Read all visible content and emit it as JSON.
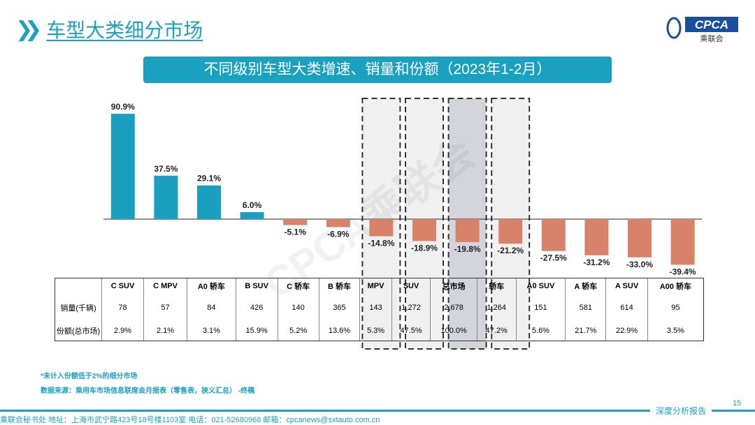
{
  "header": {
    "title": "车型大类细分市场",
    "logo_text": "CPCA",
    "logo_sub": "乘联会"
  },
  "chart_data": {
    "type": "bar",
    "title": "不同级别车型大类增速、销量和份额（2023年1-2月）",
    "categories": [
      "C SUV",
      "C MPV",
      "A0 轿车",
      "B SUV",
      "C 轿车",
      "B 轿车",
      "MPV",
      "SUV",
      "总市场",
      "轿车",
      "A0 SUV",
      "A 轿车",
      "A SUV",
      "A00 轿车"
    ],
    "values": [
      90.9,
      37.5,
      29.1,
      6.0,
      -5.1,
      -6.9,
      -14.8,
      -18.9,
      -19.8,
      -21.2,
      -27.5,
      -31.2,
      -33.0,
      -39.4
    ],
    "labels": [
      "90.9%",
      "37.5%",
      "29.1%",
      "6.0%",
      "-5.1%",
      "-6.9%",
      "-14.8%",
      "-18.9%",
      "-19.8%",
      "-21.2%",
      "-27.5%",
      "-31.2%",
      "-33.0%",
      "-39.4%"
    ],
    "highlighted": [
      "MPV",
      "SUV",
      "总市场",
      "轿车"
    ],
    "colors": {
      "positive": "#1a9fc0",
      "negative": "#d9826a"
    },
    "grid": false
  },
  "table": {
    "rows": [
      {
        "label": "销量(千辆)",
        "values": [
          "78",
          "57",
          "84",
          "426",
          "140",
          "365",
          "143",
          "1,272",
          "2,678",
          "1,264",
          "151",
          "581",
          "614",
          "95"
        ]
      },
      {
        "label": "份额(总市场)",
        "values": [
          "2.9%",
          "2.1%",
          "3.1%",
          "15.9%",
          "5.2%",
          "13.6%",
          "5.3%",
          "47.5%",
          "100.0%",
          "47.2%",
          "5.6%",
          "21.7%",
          "22.9%",
          "3.5%"
        ]
      }
    ]
  },
  "notes": {
    "n1": "*未计入份额低于2%的细分市场",
    "n2": "数据来源：乘用车市场信息联席会月报表（零售表，狭义汇总）  -终稿"
  },
  "footer": {
    "address": "乘联会秘书处   地址：上海市武宁路423号18号楼1103室   电话：021-52680968   邮箱：cpcanews@sxtauto.com.cn",
    "tag": "深度分析报告",
    "page": "15"
  },
  "watermark": "CPCA乘联会"
}
